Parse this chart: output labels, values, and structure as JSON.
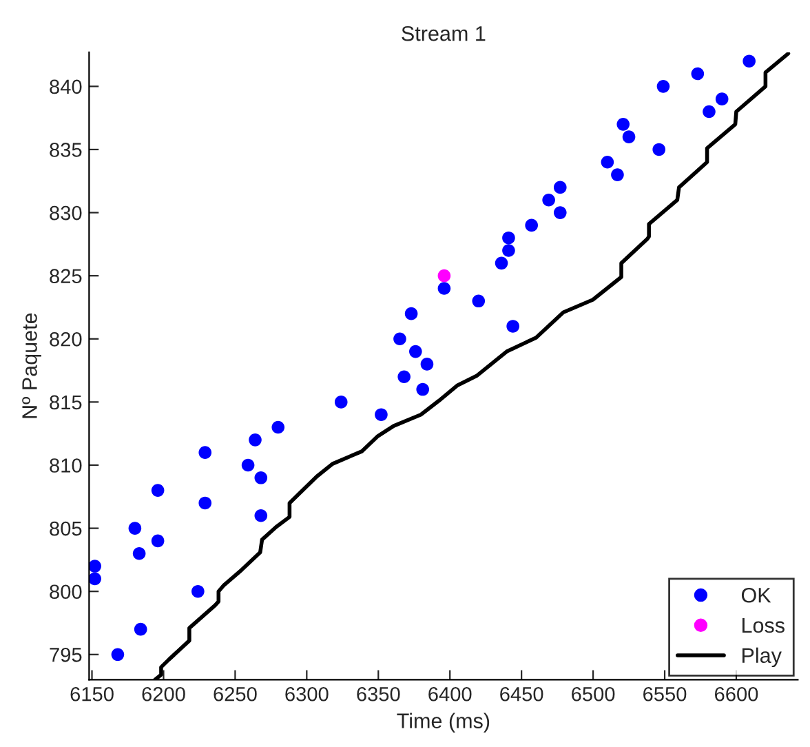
{
  "chart_data": {
    "type": "scatter",
    "title": "Stream 1",
    "xlabel": "Time (ms)",
    "ylabel": "Nº Paquete",
    "xlim": [
      6148,
      6643
    ],
    "ylim": [
      793,
      842.7
    ],
    "xticks": [
      6150,
      6200,
      6250,
      6300,
      6350,
      6400,
      6450,
      6500,
      6550,
      6600
    ],
    "yticks": [
      795,
      800,
      805,
      810,
      815,
      820,
      825,
      830,
      835,
      840
    ],
    "grid": false,
    "legend": "bottom right",
    "series": [
      {
        "name": "OK",
        "marker": "circle",
        "color": "#0000ff",
        "x": [
          6152,
          6152,
          6180,
          6183,
          6196,
          6196,
          6168,
          6184,
          6224,
          6229,
          6229,
          6259,
          6264,
          6268,
          6268,
          6280,
          6324,
          6352,
          6365,
          6368,
          6376,
          6384,
          6381,
          6373,
          6396,
          6420,
          6444,
          6436,
          6441,
          6441,
          6457,
          6477,
          6469,
          6477,
          6510,
          6517,
          6521,
          6525,
          6546,
          6549,
          6573,
          6590,
          6581,
          6609
        ],
        "values": [
          802,
          801,
          805,
          803,
          804,
          808,
          795,
          797,
          800,
          811,
          807,
          810,
          812,
          809,
          806,
          813,
          815,
          814,
          820,
          817,
          819,
          818,
          816,
          822,
          824,
          823,
          821,
          826,
          827,
          828,
          829,
          832,
          831,
          830,
          834,
          833,
          837,
          836,
          835,
          840,
          841,
          839,
          838,
          842
        ]
      },
      {
        "name": "Loss",
        "marker": "circle",
        "color": "#ff00ff",
        "x": [
          6396
        ],
        "values": [
          825
        ]
      },
      {
        "name": "Play",
        "type": "line",
        "marker": "none",
        "line_style": "solid",
        "color": "#000000",
        "x": [
          6194,
          6198.3,
          6198.3,
          6203.7,
          6218,
          6218,
          6236,
          6238.4,
          6238.4,
          6242.2,
          6254.5,
          6267.5,
          6268.8,
          6278.6,
          6288,
          6288,
          6294.4,
          6307,
          6318,
          6338.6,
          6349.7,
          6360.7,
          6379.7,
          6392.3,
          6405,
          6419,
          6439.7,
          6460.2,
          6479.2,
          6499.8,
          6519.7,
          6519.7,
          6537.7,
          6539,
          6539,
          6558.8,
          6560,
          6579.6,
          6579.6,
          6599.3,
          6600,
          6620.4,
          6620.4,
          6636.3
        ],
        "values": [
          793,
          793.4,
          794,
          794.6,
          796.1,
          797.1,
          798.9,
          799.2,
          800,
          800.5,
          801.7,
          803.1,
          804.1,
          805.1,
          805.9,
          807,
          807.7,
          809.1,
          810.1,
          811.1,
          812.3,
          813.1,
          814,
          815.1,
          816.3,
          817.1,
          819,
          820.1,
          822.1,
          823.1,
          824.9,
          826,
          827.9,
          828.1,
          829.1,
          831,
          832,
          834,
          835.1,
          837,
          838,
          840,
          841.1,
          842.6
        ]
      }
    ]
  }
}
